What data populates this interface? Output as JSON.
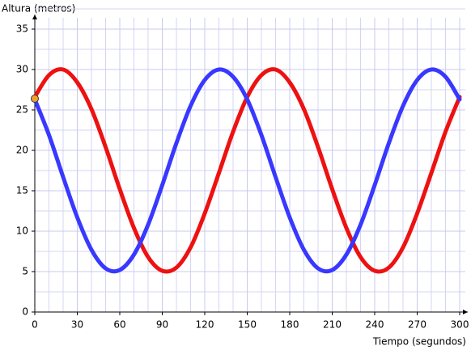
{
  "chart_data": {
    "type": "line",
    "y_label": "Altura (metros)",
    "x_label": "Tiempo (segundos)",
    "x": [
      0,
      10,
      20,
      30,
      40,
      50,
      60,
      70,
      80,
      90,
      100,
      110,
      120,
      130,
      140,
      150,
      160,
      170,
      180,
      190,
      200,
      210,
      220,
      230,
      240,
      250,
      260,
      270,
      280,
      290,
      300
    ],
    "series": [
      {
        "color": "#ee1111",
        "values": [
          26.6,
          29.3,
          30.0,
          28.4,
          25.1,
          20.4,
          15.2,
          10.4,
          6.8,
          5.1,
          5.5,
          8.0,
          12.2,
          17.2,
          22.3,
          26.6,
          29.3,
          30.0,
          28.4,
          25.1,
          20.4,
          15.2,
          10.4,
          6.8,
          5.1,
          5.5,
          8.0,
          12.2,
          17.2,
          22.3,
          26.6
        ]
      },
      {
        "color": "#3838ff",
        "values": [
          26.3,
          21.9,
          16.7,
          11.7,
          7.7,
          5.4,
          5.2,
          7.1,
          10.8,
          15.7,
          20.9,
          25.5,
          28.7,
          30.0,
          29.1,
          26.3,
          21.9,
          16.7,
          11.7,
          7.7,
          5.4,
          5.2,
          7.1,
          10.8,
          15.7,
          20.9,
          25.5,
          28.7,
          30.0,
          29.1,
          26.3
        ]
      }
    ],
    "marker": {
      "x": 0,
      "y": 26.4,
      "color": "#f0a030"
    },
    "xlim": [
      0,
      300
    ],
    "ylim": [
      0,
      35
    ],
    "xticks": [
      0,
      30,
      60,
      90,
      120,
      150,
      180,
      210,
      240,
      270,
      300
    ],
    "yticks": [
      0,
      5,
      10,
      15,
      20,
      25,
      30,
      35
    ],
    "grid": true
  }
}
